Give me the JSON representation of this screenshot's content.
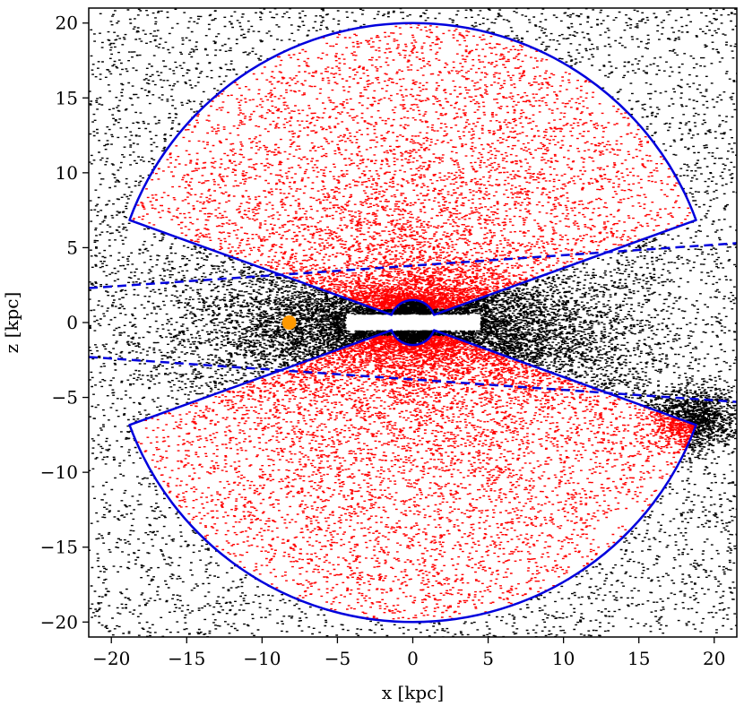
{
  "chart_data": {
    "type": "scatter",
    "title": "",
    "xlabel": "x [kpc]",
    "ylabel": "z [kpc]",
    "xlim": [
      -21.5,
      21.5
    ],
    "ylim": [
      -21,
      21
    ],
    "xticks": [
      -20,
      -15,
      -10,
      -5,
      0,
      5,
      10,
      15,
      20
    ],
    "yticks": [
      -20,
      -15,
      -10,
      -5,
      0,
      5,
      10,
      15,
      20
    ],
    "xtick_labels": [
      "−20",
      "−15",
      "−10",
      "−5",
      "0",
      "5",
      "10",
      "15",
      "20"
    ],
    "ytick_labels": [
      "−20",
      "−15",
      "−10",
      "−5",
      "0",
      "5",
      "10",
      "15",
      "20"
    ],
    "grid": false,
    "legend": "none",
    "colors": {
      "background_stars": "#000000",
      "selected_stars": "#ff0000",
      "region_outline": "#0000dd",
      "sun_marker": "#ff9900"
    },
    "series": [
      {
        "color": "#000000",
        "distribution": "all stars, concentrated toward disc plane |z| < 5 and warp near x=15..20, z=-5..-8"
      },
      {
        "color": "#ff0000",
        "distribution": "stars inside the two wedge regions, densest near the Galactic centre"
      }
    ],
    "sun": {
      "x": -8.2,
      "z": 0.0
    },
    "region": {
      "outer_radius": 20,
      "inner_radius": 1.5,
      "wedge_half_angle_from_vertical_deg": 70,
      "center": [
        0,
        0
      ]
    },
    "dashed_lines": [
      {
        "x": [
          -21.5,
          21.5
        ],
        "z": [
          2.3,
          5.3
        ]
      },
      {
        "x": [
          -21.5,
          21.5
        ],
        "z": [
          -2.3,
          -5.3
        ]
      }
    ]
  }
}
